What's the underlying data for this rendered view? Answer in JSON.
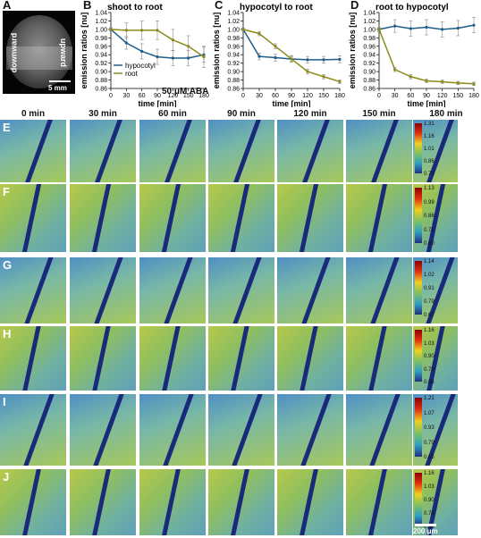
{
  "figure": {
    "panel_letters": [
      "A",
      "B",
      "C",
      "D",
      "E",
      "F",
      "G",
      "H",
      "I",
      "J"
    ],
    "photo": {
      "label_downward": "downward",
      "label_upward": "upward",
      "scale": "5 mm"
    },
    "time_headers": [
      "0 min",
      "30 min",
      "60 min",
      "90 min",
      "120 min",
      "150 min",
      "180 min"
    ],
    "treatment_label": "50 μM ABA",
    "scale_label": "200 μm",
    "colors": {
      "hypocotyl": "#1f5e8a",
      "root": "#8b8a1a"
    }
  },
  "chart_data": [
    {
      "type": "line",
      "title": "shoot to root",
      "xlabel": "time [min]",
      "ylabel": "emission ratios [nu]",
      "x": [
        0,
        30,
        60,
        90,
        120,
        150,
        180
      ],
      "xticks": [
        0,
        30,
        60,
        90,
        120,
        150,
        180
      ],
      "ylim": [
        0.86,
        1.04
      ],
      "yticks": [
        "0.86",
        "0.88",
        "0.90",
        "0.92",
        "0.94",
        "0.96",
        "0.98",
        "1.00",
        "1.02",
        "1.04"
      ],
      "legend": "bottom-left",
      "series": [
        {
          "name": "hypocotyl",
          "values": [
            1.0,
            0.968,
            0.948,
            0.935,
            0.932,
            0.932,
            0.94
          ],
          "err": [
            0.004,
            0.015,
            0.018,
            0.018,
            0.018,
            0.018,
            0.018
          ]
        },
        {
          "name": "root",
          "values": [
            1.0,
            0.998,
            0.998,
            0.998,
            0.975,
            0.96,
            0.935
          ],
          "err": [
            0.004,
            0.018,
            0.022,
            0.022,
            0.025,
            0.025,
            0.025
          ]
        }
      ]
    },
    {
      "type": "line",
      "title": "hypocotyl to root",
      "xlabel": "time [min]",
      "ylabel": "emission ratios [nu]",
      "x": [
        0,
        30,
        60,
        90,
        120,
        150,
        180
      ],
      "xticks": [
        0,
        30,
        60,
        90,
        120,
        150,
        180
      ],
      "ylim": [
        0.86,
        1.04
      ],
      "yticks": [
        "0.86",
        "0.88",
        "0.90",
        "0.92",
        "0.94",
        "0.96",
        "0.98",
        "1.00",
        "1.02",
        "1.04"
      ],
      "series": [
        {
          "name": "hypocotyl",
          "values": [
            1.0,
            0.936,
            0.933,
            0.93,
            0.928,
            0.928,
            0.929
          ],
          "err": [
            0.003,
            0.008,
            0.008,
            0.008,
            0.008,
            0.008,
            0.008
          ]
        },
        {
          "name": "root",
          "values": [
            1.0,
            0.99,
            0.96,
            0.93,
            0.9,
            0.888,
            0.876
          ],
          "err": [
            0.003,
            0.005,
            0.006,
            0.006,
            0.006,
            0.005,
            0.004
          ]
        }
      ]
    },
    {
      "type": "line",
      "title": "root to hypocotyl",
      "xlabel": "time [min]",
      "ylabel": "emission ratios [nu]",
      "x": [
        0,
        30,
        60,
        90,
        120,
        150,
        180
      ],
      "xticks": [
        0,
        30,
        60,
        90,
        120,
        150,
        180
      ],
      "ylim": [
        0.86,
        1.04
      ],
      "yticks": [
        "0.86",
        "0.88",
        "0.90",
        "0.92",
        "0.94",
        "0.96",
        "0.98",
        "1.00",
        "1.02",
        "1.04"
      ],
      "series": [
        {
          "name": "hypocotyl",
          "values": [
            1.0,
            1.008,
            1.002,
            1.005,
            1.0,
            1.003,
            1.01
          ],
          "err": [
            0.005,
            0.015,
            0.018,
            0.018,
            0.018,
            0.018,
            0.018
          ]
        },
        {
          "name": "root",
          "values": [
            1.0,
            0.905,
            0.888,
            0.878,
            0.876,
            0.873,
            0.871
          ],
          "err": [
            0.003,
            0.005,
            0.005,
            0.004,
            0.004,
            0.004,
            0.004
          ]
        }
      ]
    }
  ],
  "image_rows": [
    {
      "letter": "E",
      "colorbar": [
        "1.31",
        "1.16",
        "1.01",
        "0.86",
        "0.71"
      ]
    },
    {
      "letter": "F",
      "colorbar": [
        "1.13",
        "0.99",
        "0.86",
        "0.73",
        "0.60"
      ]
    },
    {
      "letter": "G",
      "colorbar": [
        "1.14",
        "1.02",
        "0.91",
        "0.79",
        "0.67"
      ]
    },
    {
      "letter": "H",
      "colorbar": [
        "1.16",
        "1.03",
        "0.90",
        "0.78",
        "0.65"
      ]
    },
    {
      "letter": "I",
      "colorbar": [
        "1.21",
        "1.07",
        "0.93",
        "0.79",
        "0.65"
      ]
    },
    {
      "letter": "J",
      "colorbar": [
        "1.16",
        "1.03",
        "0.90",
        "0.76",
        "0.63"
      ]
    }
  ]
}
